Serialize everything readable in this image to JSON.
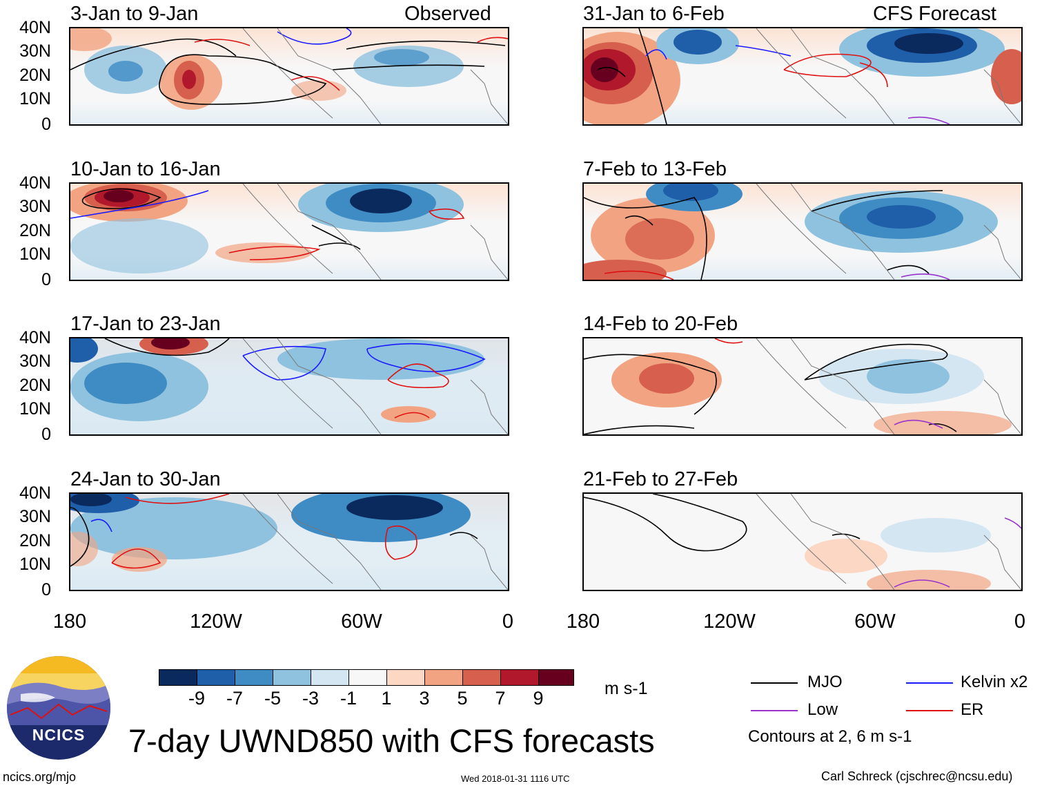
{
  "panels_left": [
    {
      "title": "3-Jan to 9-Jan",
      "label": "Observed"
    },
    {
      "title": "10-Jan to 16-Jan",
      "label": ""
    },
    {
      "title": "17-Jan to 23-Jan",
      "label": ""
    },
    {
      "title": "24-Jan to 30-Jan",
      "label": ""
    }
  ],
  "panels_right": [
    {
      "title": "31-Jan to 6-Feb",
      "label": "CFS Forecast"
    },
    {
      "title": "7-Feb to 13-Feb",
      "label": ""
    },
    {
      "title": "14-Feb to 20-Feb",
      "label": ""
    },
    {
      "title": "21-Feb to 27-Feb",
      "label": ""
    }
  ],
  "y_ticks": [
    "40N",
    "30N",
    "20N",
    "10N",
    "0"
  ],
  "x_ticks": [
    "180",
    "120W",
    "60W",
    "0"
  ],
  "colorbar": {
    "colors": [
      "#0a2a5e",
      "#1f5ea8",
      "#3f8cc5",
      "#8fc2de",
      "#d4e6f1",
      "#f7f7f7",
      "#fbd7c4",
      "#f2a482",
      "#d6604d",
      "#b2182b",
      "#67001f"
    ],
    "labels": [
      "-9",
      "-7",
      "-5",
      "-3",
      "-1",
      "1",
      "3",
      "5",
      "7",
      "9"
    ],
    "units": "m s-1"
  },
  "legend": {
    "mjo": {
      "label": "MJO",
      "color": "#000000"
    },
    "kelvin": {
      "label": "Kelvin x2",
      "color": "#1a1aff"
    },
    "low": {
      "label": "Low",
      "color": "#9933cc"
    },
    "er": {
      "label": "ER",
      "color": "#e01010"
    },
    "note": "Contours at 2, 6 m s-1"
  },
  "logo_text": "NCICS",
  "main_title": "7-day UWND850 with CFS forecasts",
  "footer": {
    "left": "ncics.org/mjo",
    "center": "Wed 2018-01-31 1116 UTC",
    "right": "Carl Schreck (cjschrec@ncsu.edu)"
  }
}
